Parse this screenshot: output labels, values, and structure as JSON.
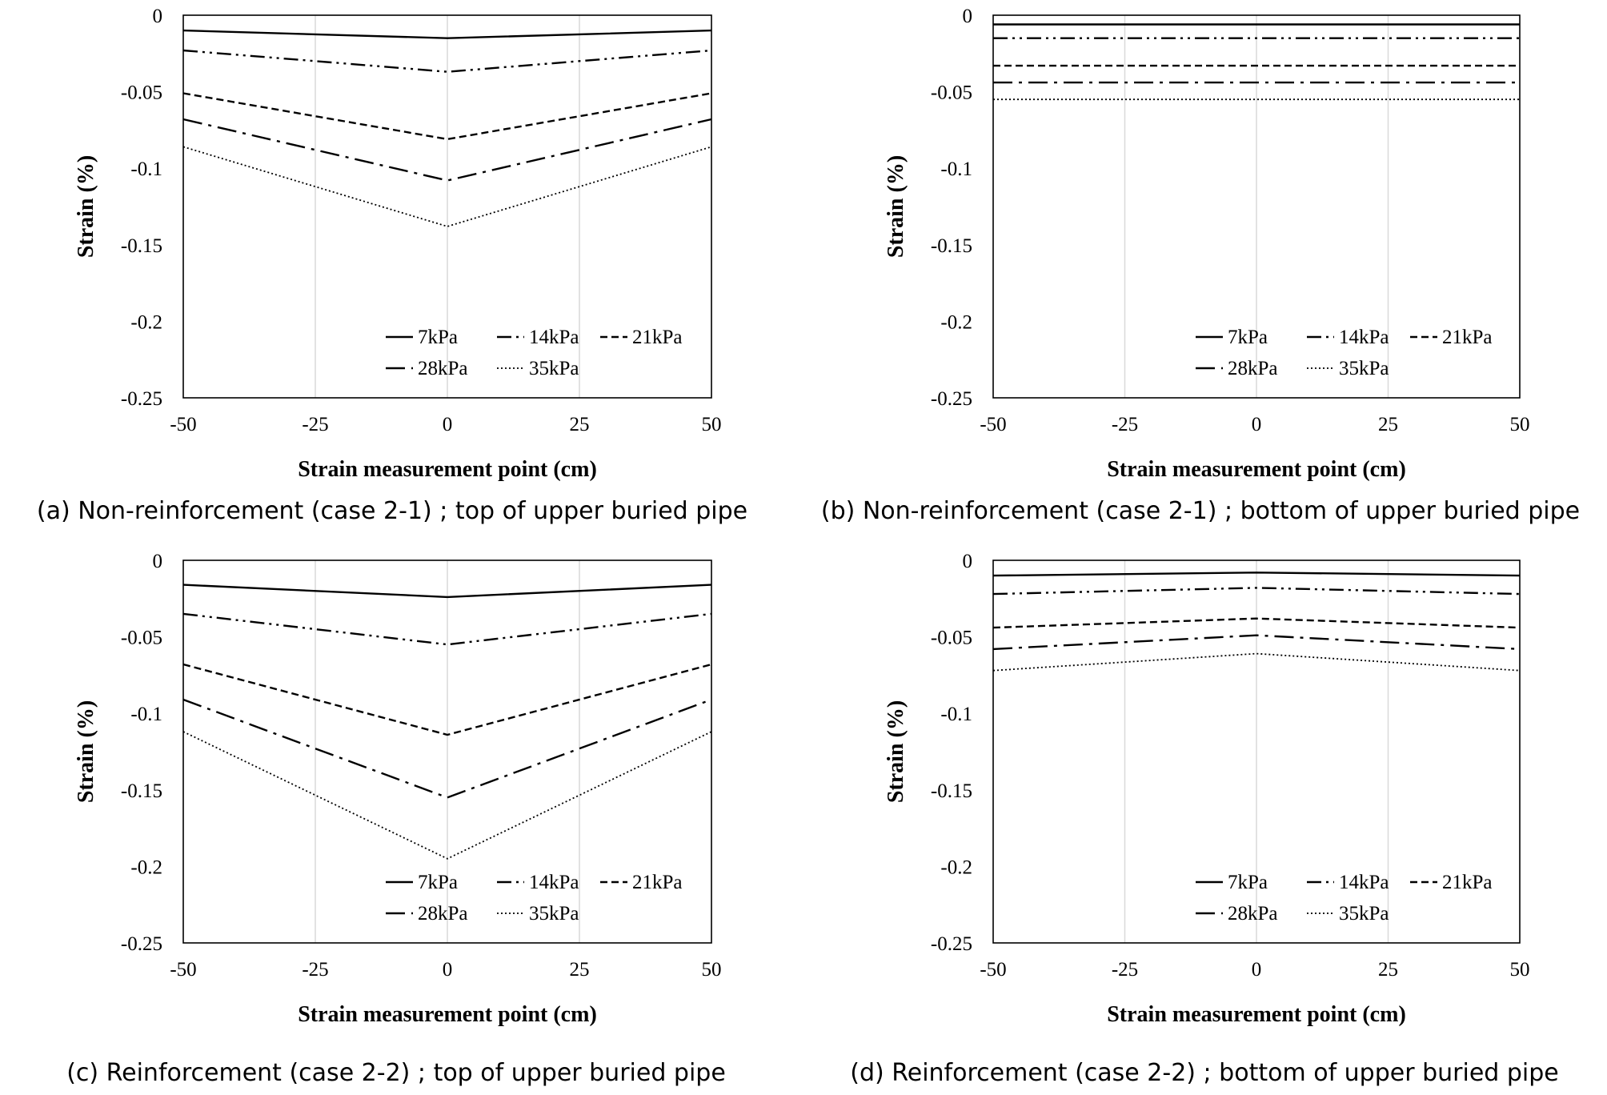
{
  "legend_labels": [
    "7kPa",
    "14kPa",
    "21kPa",
    "28kPa",
    "35kPa"
  ],
  "chart_data": [
    {
      "type": "line",
      "panel": "a",
      "caption": "(a) Non-reinforcement (case 2-1) ; top of upper buried pipe",
      "xlabel": "Strain measurement point (cm)",
      "ylabel": "Strain (%)",
      "x": [
        -50,
        0,
        50
      ],
      "xlim": [
        -50,
        50
      ],
      "ylim": [
        -0.25,
        0
      ],
      "xticks": [
        "-50",
        "-25",
        "0",
        "25",
        "50"
      ],
      "yticks": [
        "0",
        "-0.05",
        "-0.1",
        "-0.15",
        "-0.2",
        "-0.25"
      ],
      "grid": "vertical",
      "legend_position": "bottom-right",
      "series": [
        {
          "name": "7kPa",
          "dash": "solid",
          "values": [
            -0.01,
            -0.015,
            -0.01
          ]
        },
        {
          "name": "14kPa",
          "dash": "dashdotdot",
          "values": [
            -0.023,
            -0.037,
            -0.023
          ]
        },
        {
          "name": "21kPa",
          "dash": "dash",
          "values": [
            -0.051,
            -0.081,
            -0.051
          ]
        },
        {
          "name": "28kPa",
          "dash": "longdashdot",
          "values": [
            -0.068,
            -0.108,
            -0.068
          ]
        },
        {
          "name": "35kPa",
          "dash": "dot",
          "values": [
            -0.086,
            -0.138,
            -0.086
          ]
        }
      ]
    },
    {
      "type": "line",
      "panel": "b",
      "caption": "(b) Non-reinforcement (case 2-1) ; bottom of upper buried pipe",
      "xlabel": "Strain measurement point (cm)",
      "ylabel": "Strain (%)",
      "x": [
        -50,
        0,
        50
      ],
      "xlim": [
        -50,
        50
      ],
      "ylim": [
        -0.25,
        0
      ],
      "xticks": [
        "-50",
        "-25",
        "0",
        "25",
        "50"
      ],
      "yticks": [
        "0",
        "-0.05",
        "-0.1",
        "-0.15",
        "-0.2",
        "-0.25"
      ],
      "grid": "vertical",
      "legend_position": "bottom-right",
      "series": [
        {
          "name": "7kPa",
          "dash": "solid",
          "values": [
            -0.006,
            -0.006,
            -0.006
          ]
        },
        {
          "name": "14kPa",
          "dash": "dashdotdot",
          "values": [
            -0.015,
            -0.015,
            -0.015
          ]
        },
        {
          "name": "21kPa",
          "dash": "dash",
          "values": [
            -0.033,
            -0.033,
            -0.033
          ]
        },
        {
          "name": "28kPa",
          "dash": "longdashdot",
          "values": [
            -0.044,
            -0.044,
            -0.044
          ]
        },
        {
          "name": "35kPa",
          "dash": "dot",
          "values": [
            -0.055,
            -0.055,
            -0.055
          ]
        }
      ]
    },
    {
      "type": "line",
      "panel": "c",
      "caption": "(c) Reinforcement (case 2-2) ; top of upper buried pipe",
      "xlabel": "Strain measurement point (cm)",
      "ylabel": "Strain (%)",
      "x": [
        -50,
        0,
        50
      ],
      "xlim": [
        -50,
        50
      ],
      "ylim": [
        -0.25,
        0
      ],
      "xticks": [
        "-50",
        "-25",
        "0",
        "25",
        "50"
      ],
      "yticks": [
        "0",
        "-0.05",
        "-0.1",
        "-0.15",
        "-0.2",
        "-0.25"
      ],
      "grid": "vertical",
      "legend_position": "bottom-right",
      "series": [
        {
          "name": "7kPa",
          "dash": "solid",
          "values": [
            -0.016,
            -0.024,
            -0.016
          ]
        },
        {
          "name": "14kPa",
          "dash": "dashdotdot",
          "values": [
            -0.035,
            -0.055,
            -0.035
          ]
        },
        {
          "name": "21kPa",
          "dash": "dash",
          "values": [
            -0.068,
            -0.114,
            -0.068
          ]
        },
        {
          "name": "28kPa",
          "dash": "longdashdot",
          "values": [
            -0.091,
            -0.155,
            -0.091
          ]
        },
        {
          "name": "35kPa",
          "dash": "dot",
          "values": [
            -0.112,
            -0.195,
            -0.112
          ]
        }
      ]
    },
    {
      "type": "line",
      "panel": "d",
      "caption": "(d) Reinforcement (case 2-2) ; bottom of upper buried pipe",
      "xlabel": "Strain measurement point (cm)",
      "ylabel": "Strain (%)",
      "x": [
        -50,
        0,
        50
      ],
      "xlim": [
        -50,
        50
      ],
      "ylim": [
        -0.25,
        0
      ],
      "xticks": [
        "-50",
        "-25",
        "0",
        "25",
        "50"
      ],
      "yticks": [
        "0",
        "-0.05",
        "-0.1",
        "-0.15",
        "-0.2",
        "-0.25"
      ],
      "grid": "vertical",
      "legend_position": "bottom-right",
      "series": [
        {
          "name": "7kPa",
          "dash": "solid",
          "values": [
            -0.01,
            -0.008,
            -0.01
          ]
        },
        {
          "name": "14kPa",
          "dash": "dashdotdot",
          "values": [
            -0.022,
            -0.018,
            -0.022
          ]
        },
        {
          "name": "21kPa",
          "dash": "dash",
          "values": [
            -0.044,
            -0.038,
            -0.044
          ]
        },
        {
          "name": "28kPa",
          "dash": "longdashdot",
          "values": [
            -0.058,
            -0.049,
            -0.058
          ]
        },
        {
          "name": "35kPa",
          "dash": "dot",
          "values": [
            -0.072,
            -0.061,
            -0.072
          ]
        }
      ]
    }
  ]
}
